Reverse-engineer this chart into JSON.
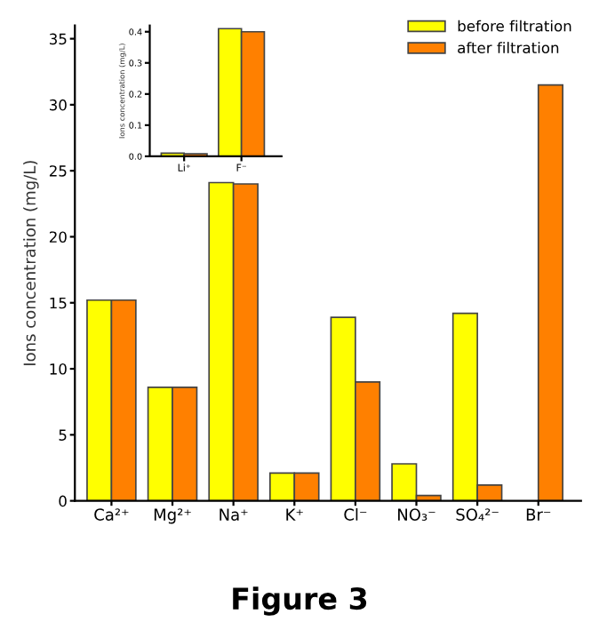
{
  "chart_data": [
    {
      "type": "bar",
      "categories": [
        "Ca²⁺",
        "Mg²⁺",
        "Na⁺",
        "K⁺",
        "Cl⁻",
        "NO₃⁻",
        "SO₄²⁻",
        "Br⁻"
      ],
      "ylabel": "Ions concentration (mg/L)",
      "series": [
        {
          "name": "before filtration",
          "color": "#ffff00",
          "values": [
            15.2,
            8.6,
            24.1,
            2.1,
            13.9,
            2.8,
            14.2,
            null
          ]
        },
        {
          "name": "after filtration",
          "color": "#ff8000",
          "values": [
            15.2,
            8.6,
            24.0,
            2.1,
            9.0,
            0.4,
            1.2,
            31.5
          ]
        }
      ],
      "ylim": [
        0,
        36
      ],
      "yticks": [
        0,
        5,
        10,
        15,
        20,
        25,
        30,
        35
      ],
      "legend": "top right",
      "grid": false,
      "annotations": [
        "Figure 3"
      ]
    },
    {
      "type": "bar",
      "categories": [
        "Li⁺",
        "F⁻"
      ],
      "ylabel": "Ions concentration (mg/L)",
      "series": [
        {
          "color": "#ffff00",
          "values": [
            0.01,
            0.41
          ]
        },
        {
          "color": "#ff8000",
          "values": [
            0.008,
            0.4
          ]
        }
      ],
      "ylim": [
        0,
        0.42
      ],
      "yticks": [
        {
          "value": 0,
          "label": "0.0"
        },
        0.1,
        0.2,
        0.3,
        0.4
      ],
      "grid": false
    }
  ]
}
